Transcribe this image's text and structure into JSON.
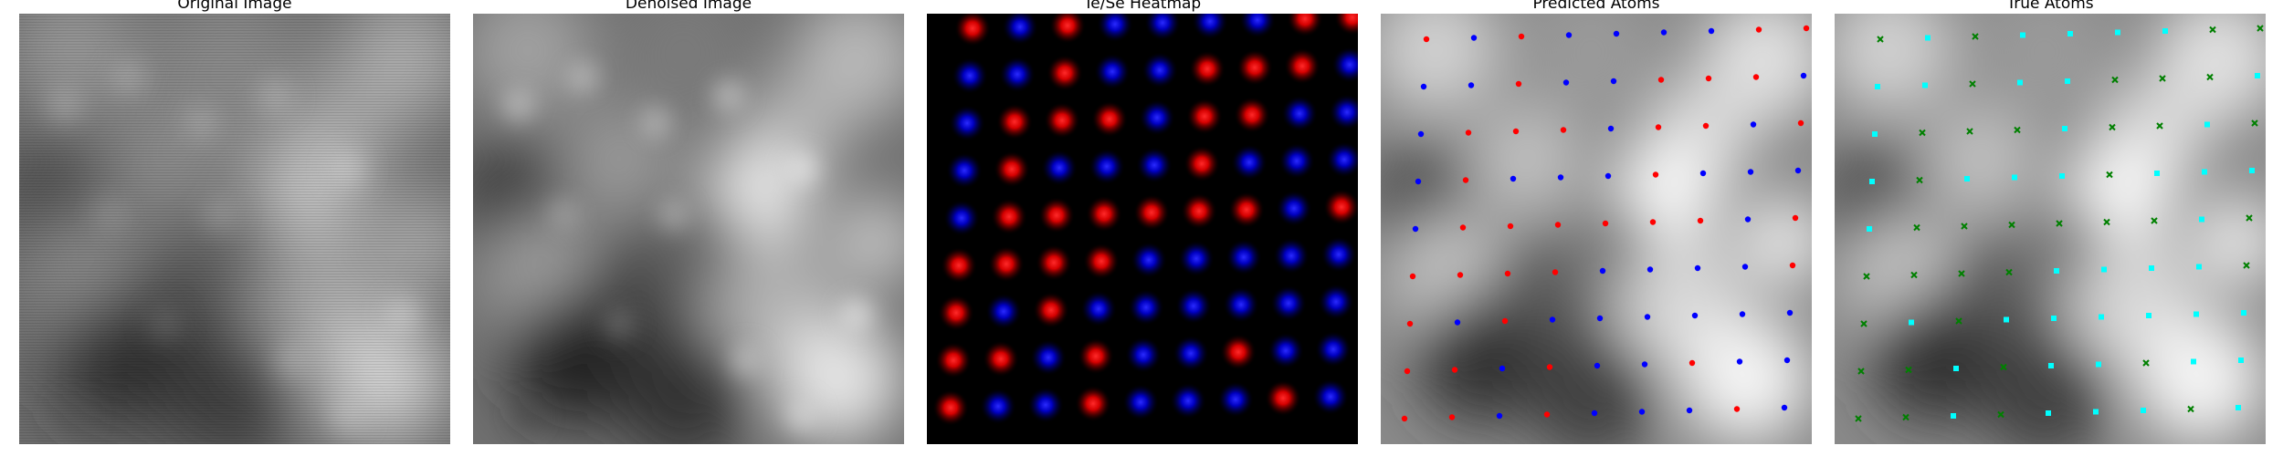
{
  "panels": [
    {
      "id": "original",
      "title": "Original Image"
    },
    {
      "id": "denoised",
      "title": "Denoised Image"
    },
    {
      "id": "heatmap",
      "title": "Te/Se Heatmap"
    },
    {
      "id": "predicted",
      "title": "Predicted Atoms"
    },
    {
      "id": "true",
      "title": "True Atoms"
    }
  ],
  "colors": {
    "te_heat": "#ff0000",
    "se_heat": "#0000ff",
    "predicted_te": "#ff0000",
    "predicted_se": "#0000ff",
    "true_te": "#008000",
    "true_se": "#00ffff"
  }
}
